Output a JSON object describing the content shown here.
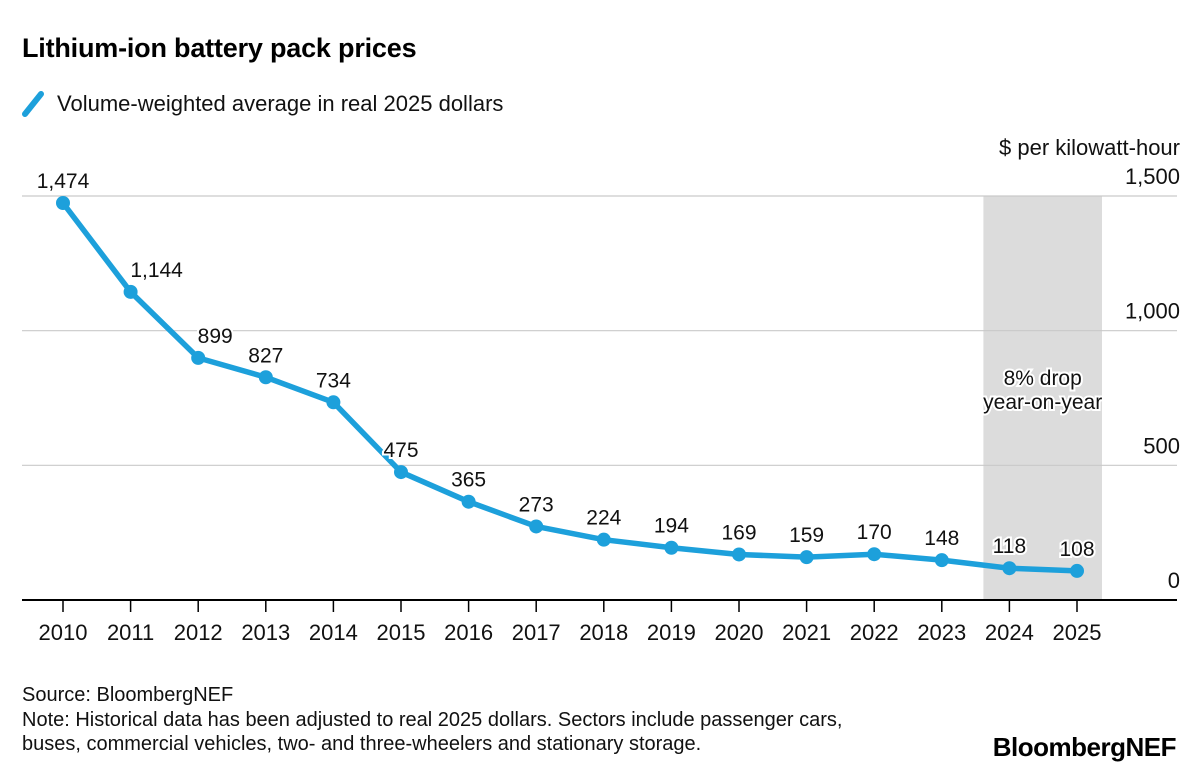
{
  "title": "Lithium-ion battery pack prices",
  "legend": {
    "label": "Volume-weighted average in real 2025 dollars"
  },
  "chart_data": {
    "type": "line",
    "title": "Lithium-ion battery pack prices",
    "series_name": "Volume-weighted average in real 2025 dollars",
    "unit_label": "$ per kilowatt-hour",
    "x": [
      2010,
      2011,
      2012,
      2013,
      2014,
      2015,
      2016,
      2017,
      2018,
      2019,
      2020,
      2021,
      2022,
      2023,
      2024,
      2025
    ],
    "values": [
      1474,
      1144,
      899,
      827,
      734,
      475,
      365,
      273,
      224,
      194,
      169,
      159,
      170,
      148,
      118,
      108
    ],
    "point_labels": [
      "1,474",
      "1,144",
      "899",
      "827",
      "734",
      "475",
      "365",
      "273",
      "224",
      "194",
      "169",
      "159",
      "170",
      "148",
      "118",
      "108"
    ],
    "label_dx": [
      0,
      26,
      17,
      0,
      0,
      0,
      0,
      0,
      0,
      0,
      0,
      0,
      0,
      0,
      0,
      0
    ],
    "ylim": [
      0,
      1500
    ],
    "y_ticks": [
      {
        "value": 1500,
        "label": "1,500"
      },
      {
        "value": 1000,
        "label": "1,000"
      },
      {
        "value": 500,
        "label": "500"
      },
      {
        "value": 0,
        "label": "0"
      }
    ],
    "grid": "horizontal",
    "legend_position": "top-left",
    "line_color": "#1da0db",
    "grid_color": "#c9c9c9",
    "axis_color": "#000000",
    "text_color": "#111111",
    "highlight_band": {
      "from_year": 2024,
      "to_year": 2025,
      "color": "#dcdcdc",
      "annotation_lines": [
        "8% drop",
        "year-on-year"
      ]
    }
  },
  "footer": {
    "source": "Source: BloombergNEF",
    "note_line1": "Note: Historical data has been adjusted to real 2025 dollars. Sectors include passenger cars,",
    "note_line2": "buses, commercial vehicles, two- and three-wheelers and stationary storage.",
    "brand": "BloombergNEF"
  }
}
